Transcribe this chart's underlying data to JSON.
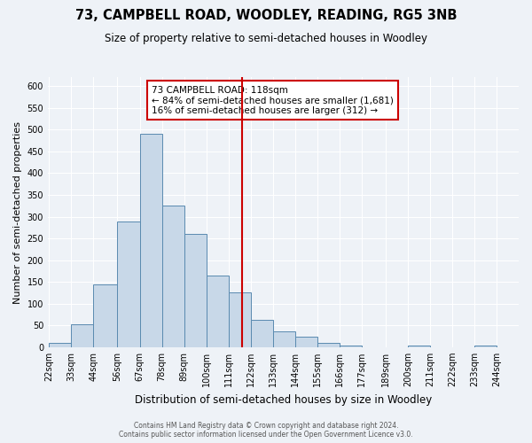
{
  "title": "73, CAMPBELL ROAD, WOODLEY, READING, RG5 3NB",
  "subtitle": "Size of property relative to semi-detached houses in Woodley",
  "xlabel": "Distribution of semi-detached houses by size in Woodley",
  "ylabel": "Number of semi-detached properties",
  "bin_labels": [
    "22sqm",
    "33sqm",
    "44sqm",
    "56sqm",
    "67sqm",
    "78sqm",
    "89sqm",
    "100sqm",
    "111sqm",
    "122sqm",
    "133sqm",
    "144sqm",
    "155sqm",
    "166sqm",
    "177sqm",
    "189sqm",
    "200sqm",
    "211sqm",
    "222sqm",
    "233sqm",
    "244sqm"
  ],
  "bin_edges": [
    22,
    33,
    44,
    56,
    67,
    78,
    89,
    100,
    111,
    122,
    133,
    144,
    155,
    166,
    177,
    189,
    200,
    211,
    222,
    233,
    244
  ],
  "bar_heights": [
    10,
    53,
    144,
    288,
    490,
    325,
    261,
    165,
    125,
    63,
    36,
    25,
    10,
    3,
    0,
    0,
    3,
    0,
    0,
    3
  ],
  "bar_fill_color": "#c8d8e8",
  "bar_edge_color": "#5a8ab0",
  "vline_x": 118,
  "vline_color": "#cc0000",
  "annotation_title": "73 CAMPBELL ROAD: 118sqm",
  "annotation_line1": "← 84% of semi-detached houses are smaller (1,681)",
  "annotation_line2": "16% of semi-detached houses are larger (312) →",
  "annotation_box_color": "#cc0000",
  "ylim": [
    0,
    620
  ],
  "yticks": [
    0,
    50,
    100,
    150,
    200,
    250,
    300,
    350,
    400,
    450,
    500,
    550,
    600
  ],
  "footer_line1": "Contains HM Land Registry data © Crown copyright and database right 2024.",
  "footer_line2": "Contains public sector information licensed under the Open Government Licence v3.0.",
  "background_color": "#eef2f7",
  "grid_color": "#ffffff",
  "title_fontsize": 10.5,
  "subtitle_fontsize": 8.5,
  "ylabel_fontsize": 8,
  "xlabel_fontsize": 8.5,
  "tick_fontsize": 7,
  "annotation_fontsize": 7.5,
  "footer_fontsize": 5.5
}
